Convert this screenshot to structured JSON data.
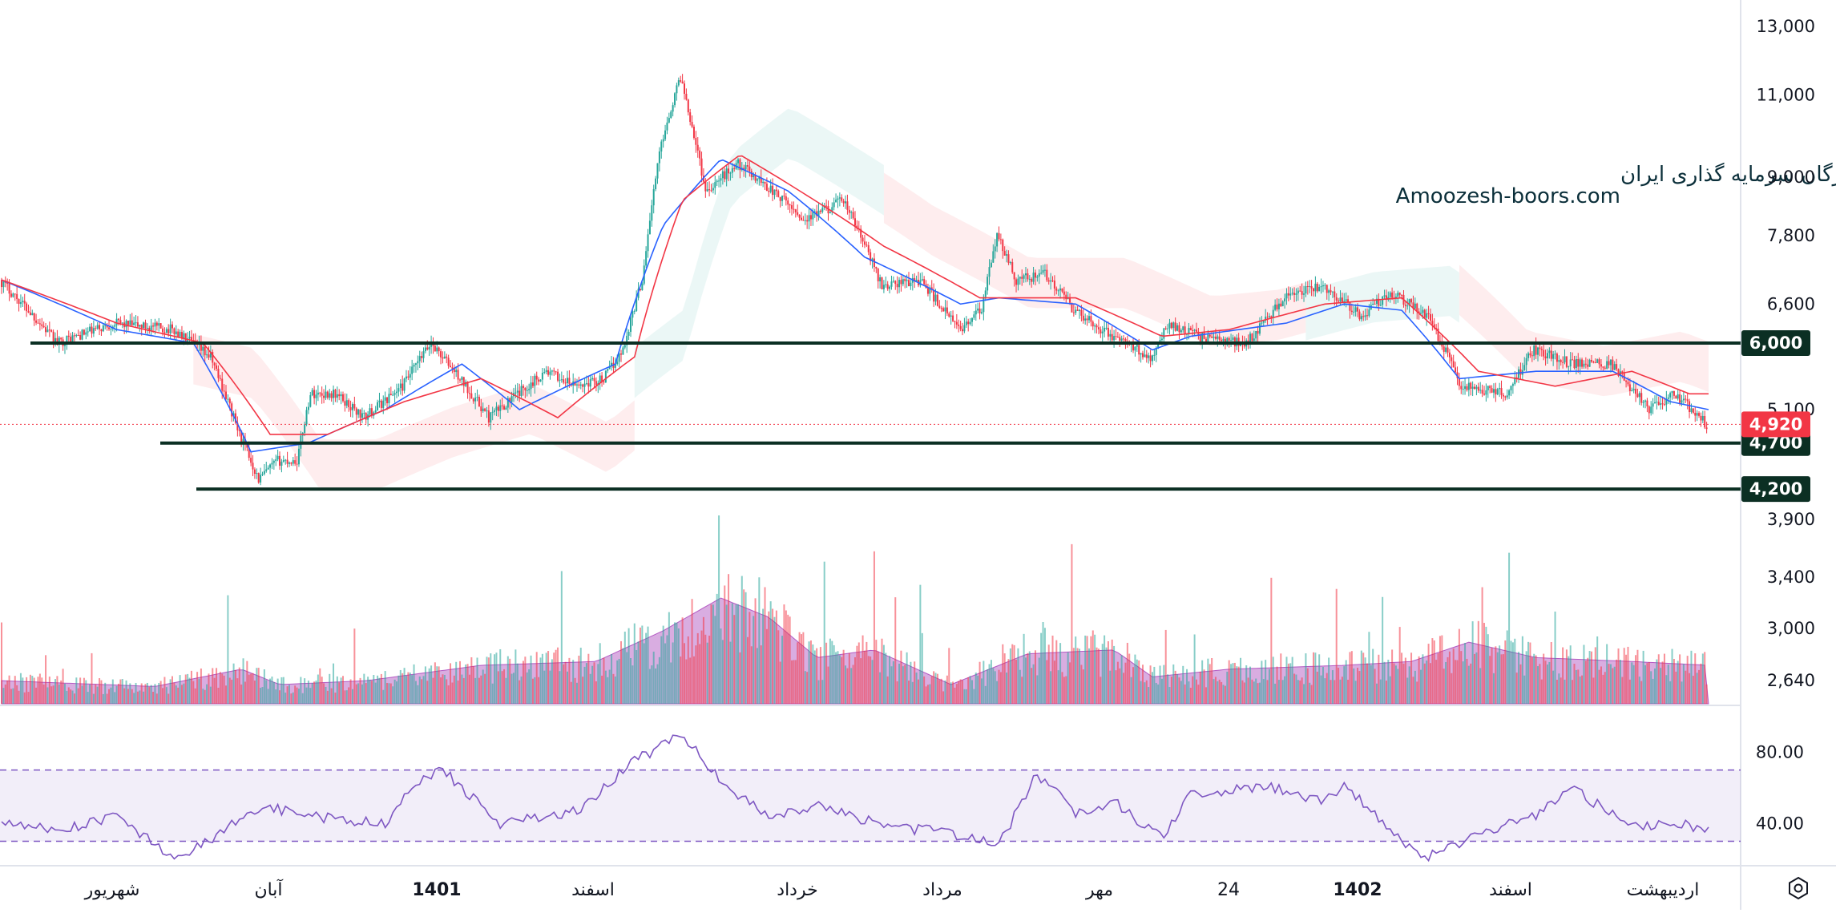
{
  "chart_data": {
    "type": "candlestick",
    "watermark": {
      "line1": "انجمن خبرگان سرمایه گذاری ایران",
      "line2": "Amoozesh-boors.com"
    },
    "price_axis": {
      "ticks": [
        "13,000",
        "11,000",
        "9,000",
        "7,800",
        "6,600",
        "5,100",
        "3,900",
        "3,400",
        "3,000",
        "2,640"
      ],
      "tick_values": [
        13000,
        11000,
        9000,
        7800,
        6600,
        5100,
        3900,
        3400,
        3000,
        2640
      ],
      "scale": "log"
    },
    "current_price": {
      "value": 4920,
      "label": "4,920",
      "color": "#f23645"
    },
    "horizontal_levels": [
      {
        "value": 6000,
        "label": "6,000"
      },
      {
        "value": 4700,
        "label": "4,700"
      },
      {
        "value": 4200,
        "label": "4,200"
      }
    ],
    "time_axis": {
      "labels": [
        {
          "text": "شهریور",
          "bold": false
        },
        {
          "text": "آبان",
          "bold": false
        },
        {
          "text": "1401",
          "bold": true
        },
        {
          "text": "اسفند",
          "bold": false
        },
        {
          "text": "خرداد",
          "bold": false
        },
        {
          "text": "مرداد",
          "bold": false
        },
        {
          "text": "مهر",
          "bold": false
        },
        {
          "text": "24",
          "bold": false
        },
        {
          "text": "1402",
          "bold": true
        },
        {
          "text": "اسفند",
          "bold": false
        },
        {
          "text": "اردیبهشت",
          "bold": false
        }
      ]
    },
    "price_path": [
      [
        0,
        7000
      ],
      [
        30,
        6000
      ],
      [
        60,
        6300
      ],
      [
        90,
        6200
      ],
      [
        110,
        5800
      ],
      [
        125,
        4800
      ],
      [
        135,
        4300
      ],
      [
        145,
        4500
      ],
      [
        155,
        4500
      ],
      [
        162,
        5300
      ],
      [
        175,
        5300
      ],
      [
        190,
        5000
      ],
      [
        210,
        5400
      ],
      [
        225,
        6000
      ],
      [
        240,
        5500
      ],
      [
        255,
        5000
      ],
      [
        270,
        5300
      ],
      [
        285,
        5600
      ],
      [
        300,
        5400
      ],
      [
        315,
        5500
      ],
      [
        325,
        5900
      ],
      [
        335,
        7000
      ],
      [
        345,
        9800
      ],
      [
        355,
        11500
      ],
      [
        368,
        8700
      ],
      [
        385,
        9300
      ],
      [
        400,
        8800
      ],
      [
        420,
        8100
      ],
      [
        440,
        8500
      ],
      [
        460,
        6900
      ],
      [
        480,
        7000
      ],
      [
        500,
        6200
      ],
      [
        512,
        6500
      ],
      [
        520,
        7800
      ],
      [
        530,
        7000
      ],
      [
        545,
        7100
      ],
      [
        560,
        6500
      ],
      [
        580,
        6100
      ],
      [
        600,
        5800
      ],
      [
        610,
        6300
      ],
      [
        625,
        6100
      ],
      [
        650,
        6000
      ],
      [
        670,
        6700
      ],
      [
        690,
        6900
      ],
      [
        710,
        6400
      ],
      [
        725,
        6800
      ],
      [
        745,
        6400
      ],
      [
        762,
        5400
      ],
      [
        785,
        5300
      ],
      [
        800,
        5900
      ],
      [
        820,
        5700
      ],
      [
        840,
        5700
      ],
      [
        860,
        5100
      ],
      [
        873,
        5300
      ],
      [
        890,
        4920
      ]
    ],
    "ma_fast": {
      "color": "#2962ff",
      "values": [
        [
          0,
          7000
        ],
        [
          60,
          6200
        ],
        [
          100,
          6000
        ],
        [
          130,
          4600
        ],
        [
          160,
          4700
        ],
        [
          200,
          5100
        ],
        [
          240,
          5700
        ],
        [
          270,
          5100
        ],
        [
          320,
          5700
        ],
        [
          345,
          8000
        ],
        [
          375,
          9400
        ],
        [
          410,
          8700
        ],
        [
          450,
          7400
        ],
        [
          500,
          6600
        ],
        [
          520,
          6700
        ],
        [
          560,
          6600
        ],
        [
          600,
          5900
        ],
        [
          620,
          6100
        ],
        [
          670,
          6300
        ],
        [
          700,
          6600
        ],
        [
          730,
          6500
        ],
        [
          760,
          5500
        ],
        [
          800,
          5600
        ],
        [
          840,
          5600
        ],
        [
          870,
          5200
        ],
        [
          890,
          5100
        ]
      ]
    },
    "ma_slow": {
      "color": "#f23645",
      "values": [
        [
          0,
          7000
        ],
        [
          60,
          6300
        ],
        [
          105,
          6000
        ],
        [
          140,
          4800
        ],
        [
          170,
          4800
        ],
        [
          210,
          5200
        ],
        [
          250,
          5500
        ],
        [
          290,
          5000
        ],
        [
          330,
          5800
        ],
        [
          355,
          8500
        ],
        [
          385,
          9500
        ],
        [
          420,
          8600
        ],
        [
          460,
          7600
        ],
        [
          510,
          6700
        ],
        [
          560,
          6700
        ],
        [
          605,
          6100
        ],
        [
          640,
          6200
        ],
        [
          690,
          6600
        ],
        [
          730,
          6700
        ],
        [
          770,
          5600
        ],
        [
          810,
          5400
        ],
        [
          850,
          5600
        ],
        [
          880,
          5300
        ],
        [
          890,
          5300
        ]
      ]
    },
    "volume": {
      "color_up": "#26a69a",
      "color_down": "#f23645",
      "ma_color": "#9c27b0",
      "ma": [
        [
          0,
          0.12
        ],
        [
          80,
          0.09
        ],
        [
          125,
          0.18
        ],
        [
          145,
          0.1
        ],
        [
          190,
          0.12
        ],
        [
          250,
          0.2
        ],
        [
          310,
          0.22
        ],
        [
          345,
          0.38
        ],
        [
          375,
          0.55
        ],
        [
          400,
          0.45
        ],
        [
          425,
          0.24
        ],
        [
          455,
          0.28
        ],
        [
          495,
          0.1
        ],
        [
          535,
          0.26
        ],
        [
          580,
          0.28
        ],
        [
          600,
          0.14
        ],
        [
          640,
          0.18
        ],
        [
          700,
          0.2
        ],
        [
          735,
          0.22
        ],
        [
          765,
          0.32
        ],
        [
          800,
          0.24
        ],
        [
          850,
          0.22
        ],
        [
          890,
          0.2
        ]
      ]
    },
    "rsi": {
      "ticks": [
        "80.00",
        "40.00"
      ],
      "upper": 70,
      "lower": 30,
      "tick_values": [
        80,
        40
      ],
      "color": "#7e57c2",
      "values": [
        [
          0,
          40
        ],
        [
          30,
          36
        ],
        [
          60,
          44
        ],
        [
          75,
          32
        ],
        [
          90,
          20
        ],
        [
          110,
          32
        ],
        [
          135,
          50
        ],
        [
          160,
          44
        ],
        [
          200,
          40
        ],
        [
          215,
          62
        ],
        [
          230,
          70
        ],
        [
          260,
          40
        ],
        [
          300,
          47
        ],
        [
          330,
          75
        ],
        [
          355,
          90
        ],
        [
          378,
          60
        ],
        [
          400,
          45
        ],
        [
          430,
          50
        ],
        [
          460,
          38
        ],
        [
          485,
          36
        ],
        [
          520,
          28
        ],
        [
          540,
          68
        ],
        [
          560,
          46
        ],
        [
          580,
          52
        ],
        [
          605,
          32
        ],
        [
          620,
          56
        ],
        [
          660,
          61
        ],
        [
          690,
          52
        ],
        [
          700,
          62
        ],
        [
          720,
          40
        ],
        [
          740,
          20
        ],
        [
          770,
          34
        ],
        [
          800,
          45
        ],
        [
          820,
          60
        ],
        [
          830,
          52
        ],
        [
          850,
          38
        ],
        [
          876,
          40
        ],
        [
          890,
          35
        ]
      ]
    }
  }
}
